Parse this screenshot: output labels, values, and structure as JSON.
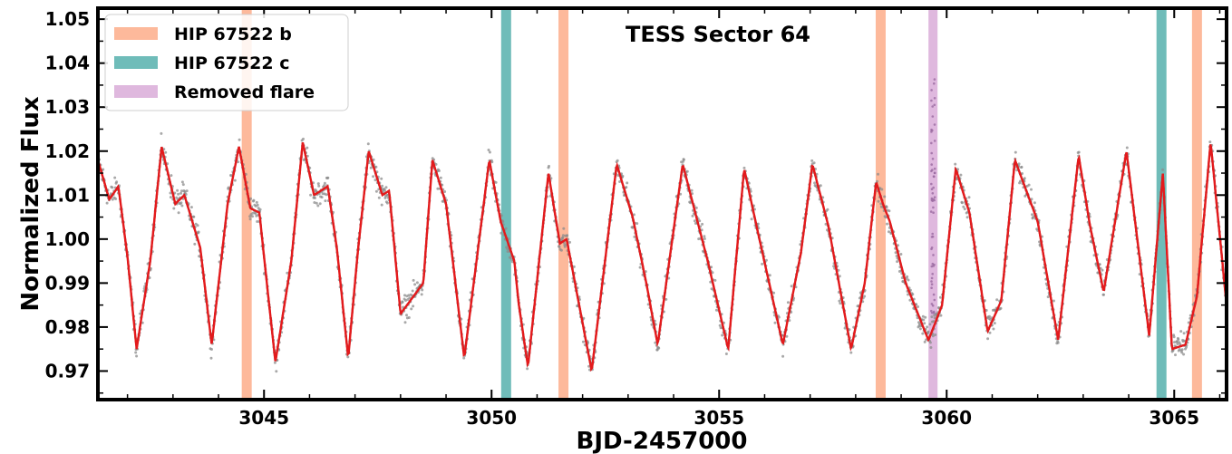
{
  "chart_data": {
    "type": "line",
    "title": "TESS Sector 64",
    "xlabel": "BJD-2457000",
    "ylabel": "Normalized Flux",
    "xlim": [
      3041.35,
      3066.15
    ],
    "ylim": [
      0.9635,
      1.0525
    ],
    "xticks": [
      3045,
      3050,
      3055,
      3060,
      3065
    ],
    "xtick_labels": [
      "3045",
      "3050",
      "3055",
      "3060",
      "3065"
    ],
    "yticks": [
      0.97,
      0.98,
      0.99,
      1.0,
      1.01,
      1.02,
      1.03,
      1.04,
      1.05
    ],
    "ytick_labels": [
      "0.97",
      "0.98",
      "0.99",
      "1.00",
      "1.01",
      "1.02",
      "1.03",
      "1.04",
      "1.05"
    ],
    "grid": false,
    "legend_position": "top-left",
    "legend": [
      {
        "label": "HIP 67522 b",
        "color": "#fdb99b"
      },
      {
        "label": "HIP 67522 c",
        "color": "#6fbcb9"
      },
      {
        "label": "Removed flare",
        "color": "#dfb8de"
      }
    ],
    "transits_b": [
      3044.62,
      3051.58,
      3058.55,
      3065.5
    ],
    "transits_c": [
      3050.32,
      3064.72
    ],
    "removed_flare": [
      3059.7
    ],
    "model_curve": {
      "x": [
        3041.35,
        3041.6,
        3041.8,
        3042.0,
        3042.2,
        3042.5,
        3042.75,
        3043.05,
        3043.25,
        3043.6,
        3043.85,
        3044.2,
        3044.45,
        3044.7,
        3044.9,
        3045.0,
        3045.25,
        3045.6,
        3045.85,
        3046.1,
        3046.4,
        3046.6,
        3046.85,
        3047.05,
        3047.3,
        3047.6,
        3047.75,
        3048.0,
        3048.5,
        3048.7,
        3049.0,
        3049.4,
        3049.95,
        3050.2,
        3050.5,
        3050.6,
        3050.8,
        3051.25,
        3051.5,
        3051.65,
        3052.2,
        3052.75,
        3053.1,
        3053.4,
        3053.65,
        3054.2,
        3054.75,
        3055.2,
        3055.55,
        3055.8,
        3056.4,
        3056.8,
        3057.05,
        3057.4,
        3057.9,
        3058.2,
        3058.45,
        3058.6,
        3058.75,
        3059.1,
        3059.6,
        3059.9,
        3060.2,
        3060.5,
        3060.9,
        3061.2,
        3061.5,
        3062.0,
        3062.45,
        3062.9,
        3063.15,
        3063.45,
        3063.95,
        3064.45,
        3064.75,
        3064.95,
        3065.25,
        3065.5,
        3065.8,
        3066.15
      ],
      "y": [
        1.018,
        1.009,
        1.012,
        0.996,
        0.975,
        0.995,
        1.021,
        1.008,
        1.01,
        0.998,
        0.976,
        1.008,
        1.021,
        1.007,
        1.006,
        0.996,
        0.972,
        0.995,
        1.022,
        1.01,
        1.012,
        0.998,
        0.973,
        0.996,
        1.02,
        1.01,
        1.011,
        0.983,
        0.99,
        1.018,
        1.008,
        0.973,
        1.018,
        1.004,
        0.995,
        0.985,
        0.971,
        1.015,
        0.999,
        1.0,
        0.97,
        1.017,
        1.005,
        0.99,
        0.976,
        1.017,
        0.995,
        0.975,
        1.016,
        1.004,
        0.976,
        0.997,
        1.017,
        1.003,
        0.975,
        0.99,
        1.013,
        1.008,
        1.004,
        0.99,
        0.977,
        0.985,
        1.016,
        1.006,
        0.979,
        0.986,
        1.018,
        1.004,
        0.977,
        1.019,
        1.003,
        0.988,
        1.02,
        0.978,
        1.015,
        0.975,
        0.976,
        0.987,
        1.022,
        0.985
      ]
    },
    "observed_points": {
      "x": [
        3041.35,
        3041.6,
        3041.8,
        3042.0,
        3042.2,
        3042.5,
        3042.75,
        3043.05,
        3043.25,
        3043.6,
        3043.85,
        3044.2,
        3044.45,
        3044.7,
        3044.9,
        3045.0,
        3045.25,
        3045.6,
        3045.85,
        3046.1,
        3046.4,
        3046.6,
        3046.85,
        3047.05,
        3047.3,
        3047.6,
        3047.75,
        3048.0,
        3048.5,
        3048.7,
        3049.0,
        3049.4,
        3049.95,
        3050.2,
        3050.5,
        3050.6,
        3050.8,
        3051.25,
        3051.5,
        3051.65,
        3052.2,
        3052.75,
        3053.1,
        3053.4,
        3053.65,
        3054.2,
        3054.75,
        3055.2,
        3055.55,
        3055.8,
        3056.4,
        3056.8,
        3057.05,
        3057.4,
        3057.9,
        3058.2,
        3058.45,
        3058.6,
        3058.75,
        3059.1,
        3059.6,
        3059.9,
        3060.2,
        3060.5,
        3060.9,
        3061.2,
        3061.5,
        3062.0,
        3062.45,
        3062.9,
        3063.15,
        3063.45,
        3063.95,
        3064.45,
        3064.75,
        3064.95,
        3065.25,
        3065.5,
        3065.8,
        3066.15
      ],
      "y": [
        1.018,
        1.009,
        1.012,
        0.996,
        0.975,
        0.995,
        1.021,
        1.008,
        1.01,
        0.998,
        0.976,
        1.008,
        1.021,
        1.007,
        1.006,
        0.996,
        0.972,
        0.995,
        1.022,
        1.01,
        1.012,
        0.998,
        0.973,
        0.996,
        1.02,
        1.01,
        1.011,
        0.983,
        0.99,
        1.018,
        1.008,
        0.973,
        1.018,
        1.004,
        0.995,
        0.985,
        0.971,
        1.015,
        0.999,
        1.0,
        0.97,
        1.017,
        1.005,
        0.99,
        0.976,
        1.017,
        0.995,
        0.975,
        1.016,
        1.004,
        0.976,
        0.997,
        1.017,
        1.003,
        0.975,
        0.99,
        1.013,
        1.008,
        1.004,
        0.99,
        0.977,
        0.985,
        1.016,
        1.006,
        0.979,
        0.986,
        1.018,
        1.004,
        0.977,
        1.019,
        1.003,
        0.988,
        1.02,
        0.978,
        1.015,
        0.975,
        0.976,
        0.987,
        1.022,
        0.985
      ],
      "color": "#8c8c8c"
    },
    "colors": {
      "model": "#e31a1c",
      "model_dashed": "#8b1a1a",
      "data": "#8c8c8c"
    }
  }
}
